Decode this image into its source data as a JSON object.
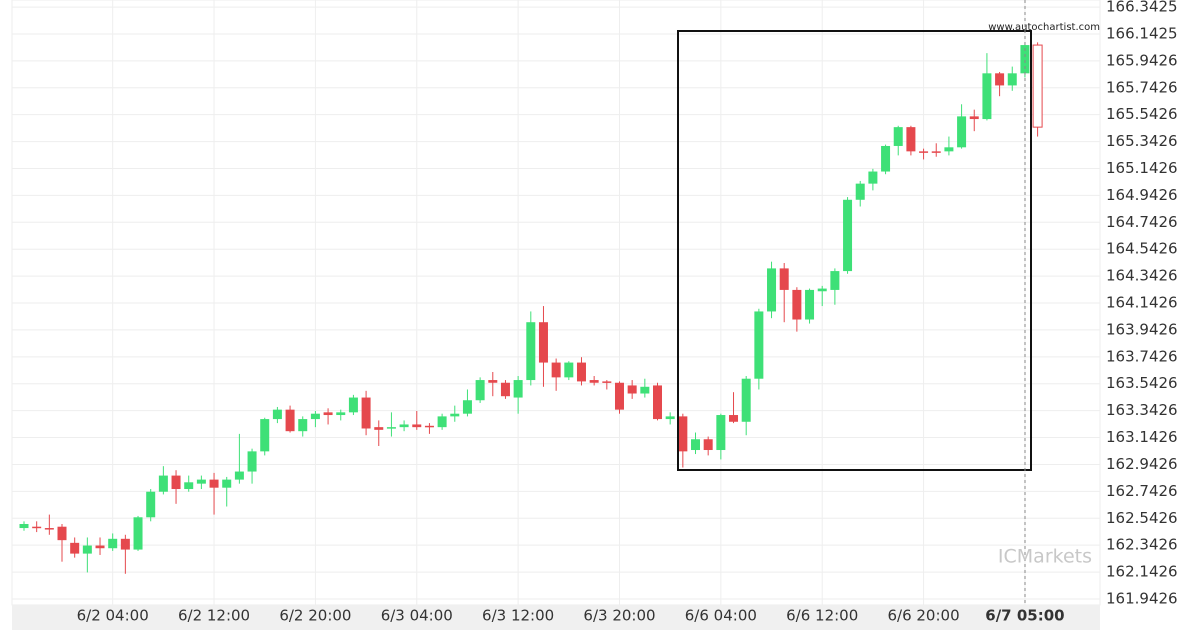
{
  "chart_data": {
    "type": "candlestick",
    "source": "www.autochartist.com",
    "brand": "ICMarkets",
    "up_color": "#3ee077",
    "down_color": "#e5484d",
    "grid": true,
    "categories": [
      null,
      null,
      null,
      null,
      null,
      null,
      null,
      "6/2 04:00",
      null,
      null,
      null,
      null,
      null,
      null,
      null,
      "6/2 12:00",
      null,
      null,
      null,
      null,
      null,
      null,
      null,
      "6/2 20:00",
      null,
      null,
      null,
      null,
      null,
      null,
      null,
      "6/3 04:00",
      null,
      null,
      null,
      null,
      null,
      null,
      null,
      "6/3 12:00",
      null,
      null,
      null,
      null,
      null,
      null,
      null,
      "6/3 20:00",
      null,
      null,
      null,
      null,
      null,
      null,
      null,
      "6/6 04:00",
      null,
      null,
      null,
      null,
      null,
      null,
      null,
      "6/6 12:00",
      null,
      null,
      null,
      null,
      null,
      null,
      null,
      "6/6 20:00",
      null,
      null,
      null,
      null,
      null,
      null,
      null,
      "6/7 05:00",
      null
    ],
    "open": [
      162.47,
      162.48,
      162.47,
      162.48,
      162.36,
      162.28,
      162.34,
      162.32,
      162.39,
      162.31,
      162.55,
      162.74,
      162.86,
      162.76,
      162.8,
      162.83,
      162.77,
      162.83,
      162.89,
      163.04,
      163.28,
      163.35,
      163.19,
      163.28,
      163.33,
      163.31,
      163.33,
      163.44,
      163.22,
      163.21,
      163.22,
      163.24,
      163.23,
      163.22,
      163.3,
      163.32,
      163.42,
      163.57,
      163.55,
      163.44,
      163.57,
      164.0,
      163.7,
      163.59,
      163.7,
      163.57,
      163.56,
      163.55,
      163.53,
      163.47,
      163.53,
      163.28,
      163.3,
      163.05,
      163.13,
      163.05,
      163.31,
      163.26,
      163.58,
      164.08,
      164.4,
      164.24,
      164.02,
      164.23,
      164.24,
      164.38,
      164.91,
      165.03,
      165.12,
      165.31,
      165.45,
      165.27,
      165.27,
      165.27,
      165.3,
      165.53,
      165.51,
      165.85,
      165.76,
      165.85,
      166.06
    ],
    "high": [
      162.52,
      162.52,
      162.57,
      162.5,
      162.4,
      162.4,
      162.4,
      162.43,
      162.42,
      162.56,
      162.76,
      162.93,
      162.9,
      162.86,
      162.86,
      162.88,
      162.85,
      163.17,
      163.06,
      163.29,
      163.37,
      163.38,
      163.3,
      163.34,
      163.36,
      163.35,
      163.46,
      163.49,
      163.27,
      163.33,
      163.27,
      163.34,
      163.25,
      163.32,
      163.38,
      163.5,
      163.59,
      163.63,
      163.57,
      163.6,
      164.08,
      164.12,
      163.73,
      163.71,
      163.74,
      163.6,
      163.57,
      163.56,
      163.57,
      163.58,
      163.55,
      163.33,
      163.32,
      163.18,
      163.15,
      163.32,
      163.48,
      163.6,
      164.1,
      164.45,
      164.44,
      164.26,
      164.25,
      164.27,
      164.4,
      164.93,
      165.05,
      165.14,
      165.32,
      165.46,
      165.46,
      165.29,
      165.33,
      165.38,
      165.62,
      165.58,
      166.0,
      165.86,
      165.9,
      166.08,
      166.08
    ],
    "low": [
      162.45,
      162.44,
      162.42,
      162.22,
      162.25,
      162.14,
      162.27,
      162.3,
      162.13,
      162.3,
      162.52,
      162.72,
      162.65,
      162.74,
      162.76,
      162.57,
      162.63,
      162.8,
      162.8,
      163.01,
      163.25,
      163.18,
      163.15,
      163.22,
      163.24,
      163.27,
      163.31,
      163.16,
      163.08,
      163.15,
      163.19,
      163.2,
      163.17,
      163.2,
      163.26,
      163.3,
      163.4,
      163.45,
      163.43,
      163.32,
      163.53,
      163.52,
      163.49,
      163.57,
      163.53,
      163.53,
      163.5,
      163.32,
      163.43,
      163.44,
      163.27,
      163.24,
      162.92,
      163.02,
      163.01,
      162.98,
      163.25,
      163.16,
      163.5,
      164.03,
      164.0,
      163.93,
      163.99,
      164.12,
      164.13,
      164.36,
      164.86,
      164.98,
      165.1,
      165.24,
      165.24,
      165.21,
      165.23,
      165.24,
      165.29,
      165.42,
      165.5,
      165.68,
      165.72,
      165.82,
      165.38
    ],
    "close": [
      162.5,
      162.47,
      162.46,
      162.38,
      162.28,
      162.34,
      162.32,
      162.39,
      162.31,
      162.55,
      162.74,
      162.86,
      162.76,
      162.81,
      162.83,
      162.77,
      162.83,
      162.89,
      163.04,
      163.28,
      163.35,
      163.19,
      163.28,
      163.32,
      163.31,
      163.33,
      163.44,
      163.21,
      163.2,
      163.22,
      163.24,
      163.22,
      163.22,
      163.3,
      163.32,
      163.42,
      163.57,
      163.55,
      163.45,
      163.57,
      164.0,
      163.7,
      163.59,
      163.7,
      163.56,
      163.55,
      163.55,
      163.35,
      163.47,
      163.52,
      163.28,
      163.3,
      163.04,
      163.13,
      163.05,
      163.31,
      163.26,
      163.58,
      164.08,
      164.4,
      164.24,
      164.02,
      164.24,
      164.25,
      164.38,
      164.91,
      165.03,
      165.12,
      165.31,
      165.45,
      165.27,
      165.26,
      165.26,
      165.3,
      165.53,
      165.51,
      165.85,
      165.76,
      165.85,
      166.06,
      165.45
    ],
    "ylim": [
      161.898,
      166.395
    ],
    "yticks": [
      166.3425,
      166.1425,
      165.9426,
      165.7426,
      165.5426,
      165.3426,
      165.1426,
      164.9426,
      164.7426,
      164.5426,
      164.3426,
      164.1426,
      163.9426,
      163.7426,
      163.5426,
      163.3426,
      163.1426,
      162.9426,
      162.7426,
      162.5426,
      162.3426,
      162.1426,
      161.9426
    ]
  }
}
